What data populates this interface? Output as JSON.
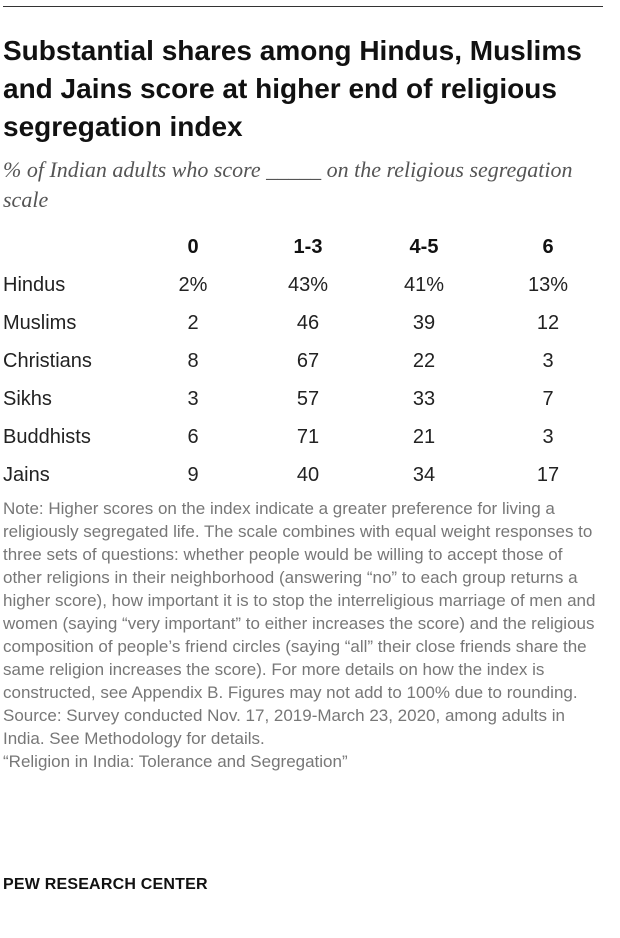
{
  "title": "Substantial shares among Hindus, Muslims and Jains score at higher end of religious segregation index",
  "subtitle": "% of Indian adults who score _____ on the religious segregation scale",
  "chart_data": {
    "type": "table",
    "columns": [
      "0",
      "1-3",
      "4-5",
      "6"
    ],
    "rows": [
      {
        "label": "Hindus",
        "cells": [
          "2%",
          "43%",
          "41%",
          "13%"
        ],
        "values": [
          2,
          43,
          41,
          13
        ]
      },
      {
        "label": "Muslims",
        "cells": [
          "2",
          "46",
          "39",
          "12"
        ],
        "values": [
          2,
          46,
          39,
          12
        ]
      },
      {
        "label": "Christians",
        "cells": [
          "8",
          "67",
          "22",
          "3"
        ],
        "values": [
          8,
          67,
          22,
          3
        ]
      },
      {
        "label": "Sikhs",
        "cells": [
          "3",
          "57",
          "33",
          "7"
        ],
        "values": [
          3,
          57,
          33,
          7
        ]
      },
      {
        "label": "Buddhists",
        "cells": [
          "6",
          "71",
          "21",
          "3"
        ],
        "values": [
          6,
          71,
          21,
          3
        ]
      },
      {
        "label": "Jains",
        "cells": [
          "9",
          "40",
          "34",
          "17"
        ],
        "values": [
          9,
          40,
          34,
          17
        ]
      }
    ]
  },
  "note": "Note: Higher scores on the index indicate a greater preference for living a religiously segregated life. The scale combines with equal weight responses to three sets of questions: whether people would be willing to accept those of other religions in their neighborhood (answering “no” to each group returns a higher score), how important it is to stop the interreligious marriage of men and women (saying “very important” to either increases the score) and the religious composition of people’s friend circles (saying “all” their close friends share the same religion increases the score). For more details on how the index is constructed, see Appendix B. Figures may not add to 100% due to rounding.",
  "source": "Source: Survey conducted Nov. 17, 2019-March 23, 2020, among adults in India. See Methodology for details.",
  "report": "“Religion in India: Tolerance and Segregation”",
  "brand": "PEW RESEARCH CENTER"
}
